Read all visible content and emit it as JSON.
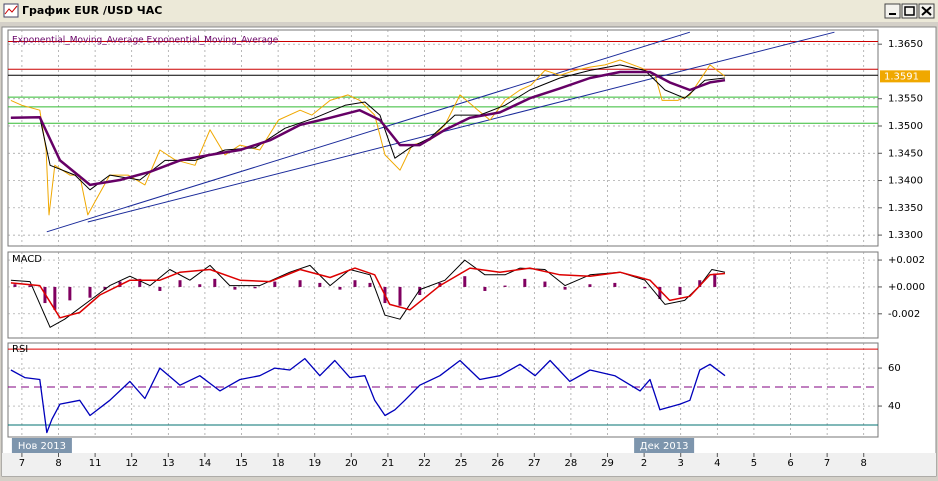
{
  "window": {
    "title": "График EUR /USD ЧАС"
  },
  "chart_data": [
    {
      "type": "line",
      "indicator_label": "Exponential_Moving_Average Exponential_Moving_Average",
      "xlim": [
        -0.38,
        23.39
      ],
      "ylim": [
        1.328,
        1.3676
      ],
      "yticks": [
        {
          "value": 1.365,
          "label": "1.3650"
        },
        {
          "value": 1.355,
          "label": "1.3550"
        },
        {
          "value": 1.35,
          "label": "1.3500"
        },
        {
          "value": 1.345,
          "label": "1.3450"
        },
        {
          "value": 1.34,
          "label": "1.3400"
        },
        {
          "value": 1.335,
          "label": "1.3350"
        },
        {
          "value": 1.33,
          "label": "1.3300"
        }
      ],
      "grid": true,
      "series": [
        {
          "color": "#f0a800",
          "x": [
            -0.3,
            0,
            0.49,
            0.66,
            0.74,
            0.9,
            1.31,
            1.58,
            1.8,
            2.02,
            2.4,
            2.9,
            3.36,
            3.77,
            4.18,
            4.73,
            5.14,
            5.55,
            5.96,
            6.5,
            7.01,
            7.6,
            7.92,
            8.42,
            8.91,
            9.23,
            9.64,
            9.92,
            10.33,
            10.66,
            11.15,
            11.56,
            11.97,
            12.46,
            12.79,
            13.2,
            13.61,
            13.91,
            14.29,
            14.7,
            15.11,
            15.52,
            15.93,
            16.34,
            16.94,
            17.3,
            17.49,
            17.92,
            18.25,
            18.52,
            18.8,
            19.21
          ],
          "values": [
            1.3547,
            1.3538,
            1.3529,
            1.3456,
            1.3337,
            1.3428,
            1.341,
            1.341,
            1.3337,
            1.3364,
            1.341,
            1.341,
            1.3392,
            1.3456,
            1.3438,
            1.3428,
            1.3493,
            1.3447,
            1.3465,
            1.3456,
            1.3511,
            1.3529,
            1.352,
            1.3547,
            1.3557,
            1.3547,
            1.352,
            1.3447,
            1.3419,
            1.3465,
            1.3474,
            1.3502,
            1.3557,
            1.3529,
            1.3511,
            1.3547,
            1.3566,
            1.3575,
            1.3602,
            1.3593,
            1.3602,
            1.3608,
            1.3612,
            1.3621,
            1.3606,
            1.3593,
            1.3547,
            1.3547,
            1.3557,
            1.3584,
            1.3612,
            1.3591
          ]
        },
        {
          "color": "#000000",
          "x": [
            -0.3,
            0.49,
            0.77,
            1.45,
            1.86,
            2.4,
            3.22,
            3.91,
            4.73,
            5.55,
            6.37,
            7.19,
            8.01,
            8.83,
            9.37,
            9.78,
            10.19,
            10.6,
            11.15,
            11.83,
            12.51,
            13.2,
            13.88,
            14.7,
            15.52,
            16.34,
            17.02,
            17.57,
            18.11,
            18.66,
            19.21
          ],
          "values": [
            1.3515,
            1.3516,
            1.3428,
            1.341,
            1.3383,
            1.341,
            1.3401,
            1.3437,
            1.3437,
            1.3456,
            1.346,
            1.3496,
            1.3515,
            1.3538,
            1.3544,
            1.352,
            1.3441,
            1.346,
            1.3478,
            1.352,
            1.352,
            1.3538,
            1.3566,
            1.3588,
            1.3602,
            1.3612,
            1.3602,
            1.3566,
            1.3551,
            1.3584,
            1.3588
          ]
        },
        {
          "color": "#660066",
          "x": [
            -0.3,
            0.49,
            1.04,
            1.86,
            2.68,
            3.5,
            4.32,
            5.14,
            5.96,
            6.78,
            7.6,
            8.42,
            9.23,
            9.78,
            10.33,
            10.87,
            11.56,
            12.24,
            13.06,
            13.88,
            14.7,
            15.52,
            16.34,
            17.16,
            17.7,
            18.25,
            18.8,
            19.21
          ],
          "values": [
            1.3515,
            1.3516,
            1.3437,
            1.3392,
            1.3401,
            1.3416,
            1.3437,
            1.3447,
            1.3456,
            1.3474,
            1.3502,
            1.3515,
            1.3529,
            1.3511,
            1.3465,
            1.3465,
            1.3493,
            1.3515,
            1.3525,
            1.3551,
            1.3569,
            1.3588,
            1.3599,
            1.3599,
            1.358,
            1.3566,
            1.358,
            1.3584
          ]
        }
      ],
      "hlines": [
        {
          "value": 1.3655,
          "color": "#cc0000"
        },
        {
          "value": 1.3604,
          "color": "#cc0000"
        },
        {
          "value": 1.3593,
          "color": "#000000"
        },
        {
          "value": 1.3553,
          "color": "#33bb33"
        },
        {
          "value": 1.3535,
          "color": "#33bb33"
        },
        {
          "value": 1.3505,
          "color": "#33bb33"
        }
      ],
      "trendlines": [
        {
          "color": "#1a2a9a",
          "x": [
            0.68,
            18.25
          ],
          "y": [
            1.3306,
            1.3672
          ]
        },
        {
          "color": "#1a2a9a",
          "x": [
            1.8,
            22.2
          ],
          "y": [
            1.3324,
            1.3672
          ]
        }
      ],
      "price_label_color": "#f0a800"
    },
    {
      "type": "line",
      "title": "MACD",
      "xlim": [
        -0.38,
        23.39
      ],
      "ylim": [
        -0.0038,
        0.0026
      ],
      "yticks": [
        {
          "value": 0.002,
          "label": "+0.002"
        },
        {
          "value": 0,
          "label": "+0.000"
        },
        {
          "value": -0.002,
          "label": "-0.002"
        }
      ],
      "grid": true,
      "series": [
        {
          "kind": "bar",
          "color": "#800060",
          "x": [
            -0.19,
            0.22,
            0.63,
            0.9,
            1.31,
            1.86,
            2.27,
            2.68,
            3.22,
            3.77,
            4.32,
            4.86,
            5.27,
            5.82,
            6.37,
            6.91,
            7.6,
            8.14,
            8.69,
            9.1,
            9.51,
            9.92,
            10.33,
            10.87,
            11.42,
            12.1,
            12.65,
            13.2,
            13.74,
            14.29,
            14.84,
            15.52,
            16.2,
            17.02,
            17.43,
            17.98,
            18.52,
            18.93
          ],
          "values": [
            0.0002,
            0.0001,
            -0.0012,
            -0.0017,
            -0.001,
            -0.0008,
            -0.0002,
            0.0004,
            0.0006,
            -0.0003,
            0.0005,
            0.0002,
            0.0006,
            -0.0002,
            -0.0001,
            0.0004,
            0.0005,
            0.0003,
            -0.0002,
            0.0005,
            0.0003,
            -0.0012,
            -0.0014,
            -0.0006,
            0.0003,
            0.0008,
            -0.0003,
            0.0001,
            0.0006,
            0.0004,
            -0.0002,
            0.0002,
            0.0003,
            -0.0001,
            -0.0009,
            -0.0006,
            0.0005,
            0.001
          ]
        },
        {
          "kind": "line",
          "color": "#000000",
          "x": [
            -0.3,
            0.22,
            0.77,
            1.17,
            1.86,
            2.4,
            2.95,
            3.5,
            4.04,
            4.59,
            5.14,
            5.68,
            6.5,
            7.32,
            7.87,
            8.42,
            8.96,
            9.51,
            9.92,
            10.33,
            10.87,
            11.56,
            12.1,
            12.65,
            13.2,
            13.61,
            14.29,
            14.84,
            15.52,
            16.34,
            17.02,
            17.57,
            18.11,
            18.52,
            18.85,
            19.21
          ],
          "values": [
            0.0005,
            0.0004,
            -0.003,
            -0.0024,
            -0.001,
            0.0001,
            0.0008,
            0.0001,
            0.0013,
            0.0005,
            0.0016,
            0.0001,
            0.0001,
            0.0011,
            0.0016,
            0.0001,
            0.0013,
            0.0009,
            -0.0021,
            -0.0024,
            -0.0002,
            0.0005,
            0.002,
            0.0009,
            0.0009,
            0.0014,
            0.0013,
            0.0001,
            0.0009,
            0.0011,
            0.0005,
            -0.0013,
            -0.001,
            0.0001,
            0.0013,
            0.0011
          ]
        },
        {
          "kind": "line",
          "color": "#dd0000",
          "x": [
            -0.3,
            0.49,
            1.04,
            1.58,
            2.13,
            2.95,
            3.77,
            4.32,
            5.14,
            5.96,
            6.78,
            7.6,
            8.42,
            9.1,
            9.64,
            10.05,
            10.6,
            11.42,
            12.24,
            13.06,
            13.88,
            14.7,
            15.52,
            16.34,
            17.16,
            17.7,
            18.25,
            18.8,
            19.21
          ],
          "values": [
            0.0003,
            0.0001,
            -0.0023,
            -0.0019,
            -0.0006,
            0.0005,
            0.0005,
            0.0011,
            0.0013,
            0.0005,
            0.0004,
            0.0013,
            0.0007,
            0.0014,
            0.0009,
            -0.0013,
            -0.0017,
            0.0001,
            0.0014,
            0.0011,
            0.0014,
            0.0009,
            0.0008,
            0.0011,
            0.0005,
            -0.001,
            -0.0007,
            0.0009,
            0.001
          ]
        }
      ]
    },
    {
      "type": "line",
      "title": "RSI",
      "xlim": [
        -0.38,
        23.39
      ],
      "ylim": [
        23.7,
        73.2
      ],
      "yticks": [
        60,
        40
      ],
      "grid": true,
      "xticks": [
        {
          "value": 0,
          "label": "7"
        },
        {
          "value": 1,
          "label": "8"
        },
        {
          "value": 2,
          "label": "11"
        },
        {
          "value": 3,
          "label": "12"
        },
        {
          "value": 4,
          "label": "13"
        },
        {
          "value": 5,
          "label": "14"
        },
        {
          "value": 6,
          "label": "15"
        },
        {
          "value": 7,
          "label": "18"
        },
        {
          "value": 8,
          "label": "19"
        },
        {
          "value": 9,
          "label": "20"
        },
        {
          "value": 10,
          "label": "21"
        },
        {
          "value": 11,
          "label": "22"
        },
        {
          "value": 12,
          "label": "25"
        },
        {
          "value": 13,
          "label": "26"
        },
        {
          "value": 14,
          "label": "27"
        },
        {
          "value": 15,
          "label": "28"
        },
        {
          "value": 16,
          "label": "29"
        },
        {
          "value": 17,
          "label": "2"
        },
        {
          "value": 18,
          "label": "3"
        },
        {
          "value": 19,
          "label": "4"
        },
        {
          "value": 20,
          "label": "5"
        },
        {
          "value": 21,
          "label": "6"
        },
        {
          "value": 22,
          "label": "7"
        },
        {
          "value": 23,
          "label": "8"
        }
      ],
      "month_labels": [
        {
          "value": 0,
          "label": "Нов 2013"
        },
        {
          "value": 17,
          "label": "Дек 2013"
        }
      ],
      "series": [
        {
          "kind": "line",
          "color": "#0000bb",
          "x": [
            -0.3,
            0.08,
            0.49,
            0.68,
            0.82,
            1.04,
            1.58,
            1.86,
            2.4,
            2.95,
            3.36,
            3.77,
            4.32,
            4.86,
            5.41,
            5.96,
            6.5,
            6.91,
            7.32,
            7.73,
            8.14,
            8.55,
            8.96,
            9.37,
            9.64,
            9.92,
            10.19,
            10.46,
            10.87,
            11.42,
            11.97,
            12.51,
            13.06,
            13.61,
            14.02,
            14.43,
            14.97,
            15.52,
            16.2,
            16.89,
            17.16,
            17.43,
            17.98,
            18.25,
            18.52,
            18.8,
            19.21
          ],
          "values": [
            59,
            55,
            54,
            26,
            33,
            41,
            43,
            35,
            43,
            53,
            44,
            60,
            51,
            56,
            48,
            54,
            56,
            60,
            59,
            65,
            56,
            64,
            55,
            56,
            43,
            35,
            38,
            43,
            51,
            56,
            64,
            54,
            56,
            62,
            56,
            64,
            53,
            59,
            56,
            48,
            54,
            38,
            41,
            43,
            59,
            62,
            56
          ]
        }
      ],
      "hlines": [
        {
          "value": 70,
          "color": "#dd0000"
        },
        {
          "value": 50,
          "color": "#800080",
          "dashed": true
        },
        {
          "value": 30,
          "color": "#007070"
        }
      ]
    }
  ]
}
